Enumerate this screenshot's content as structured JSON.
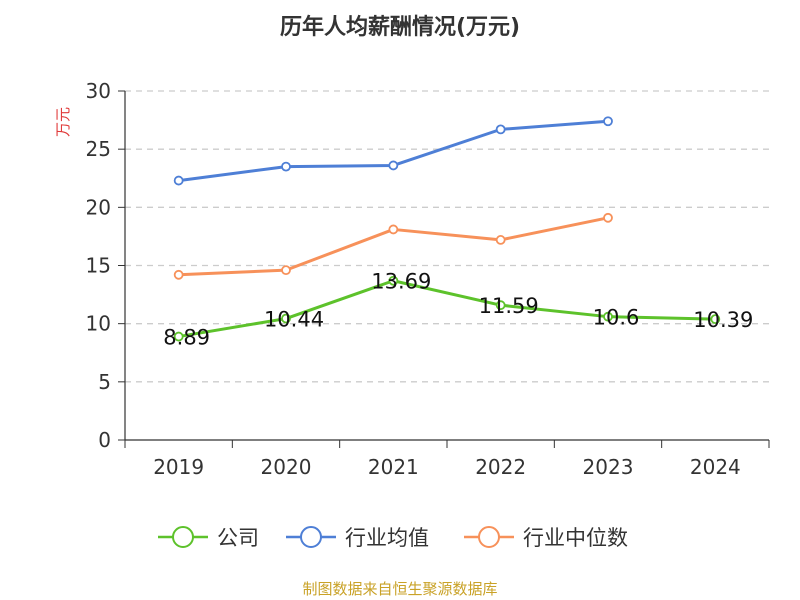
{
  "chart_data": {
    "type": "line",
    "title": "历年人均薪酬情况(万元)",
    "ylabel": "万元",
    "xlabel": "",
    "categories": [
      "2019",
      "2020",
      "2021",
      "2022",
      "2023",
      "2024"
    ],
    "ylim": [
      0,
      30
    ],
    "yticks": [
      0,
      5,
      10,
      15,
      20,
      25,
      30
    ],
    "grid": "horizontal-dashed",
    "legend_position": "bottom",
    "series": [
      {
        "name": "公司",
        "color": "#5dc22b",
        "values": [
          8.89,
          10.44,
          13.69,
          11.59,
          10.6,
          10.39
        ],
        "labels": [
          "8.89",
          "10.44",
          "13.69",
          "11.59",
          "10.6",
          "10.39"
        ]
      },
      {
        "name": "行业均值",
        "color": "#4e7fd6",
        "values": [
          22.3,
          23.5,
          23.6,
          26.7,
          27.4,
          null
        ]
      },
      {
        "name": "行业中位数",
        "color": "#f7915a",
        "values": [
          14.2,
          14.6,
          18.1,
          17.2,
          19.1,
          null
        ]
      }
    ]
  },
  "colors": {
    "ylabel": "#e03b3b",
    "source": "#c9a227",
    "axis": "#333333",
    "grid": "#cccccc"
  },
  "footer": {
    "source": "制图数据来自恒生聚源数据库"
  }
}
